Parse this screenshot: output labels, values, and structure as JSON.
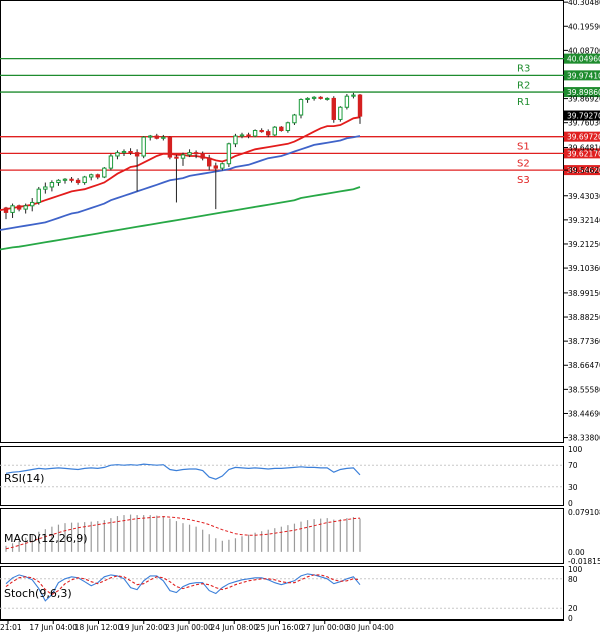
{
  "chart_data": [
    {
      "type": "candlestick",
      "panel": "price",
      "y_axis": {
        "range": [
          38.318,
          40.31
        ],
        "ticks": [
          "40.30480",
          "40.19590",
          "40.08700",
          "39.86920",
          "39.76030",
          "39.64810",
          "39.54620",
          "39.43030",
          "39.32140",
          "39.21250",
          "39.10360",
          "38.99150",
          "38.88250",
          "38.77360",
          "38.66470",
          "38.55580",
          "38.44690",
          "38.33800"
        ]
      },
      "x_axis": {
        "ticks": [
          "21:01",
          "17 Jun 04:00",
          "18 Jun 12:00",
          "19 Jun 20:00",
          "23 Jun 00:00",
          "24 Jun 08:00",
          "25 Jun 16:00",
          "27 Jun 00:00",
          "30 Jun 04:00"
        ]
      },
      "candles": [
        [
          39.375,
          39.38,
          39.325,
          39.355
        ],
        [
          39.355,
          39.395,
          39.33,
          39.385
        ],
        [
          39.385,
          39.39,
          39.36,
          39.37
        ],
        [
          39.37,
          39.395,
          39.35,
          39.385
        ],
        [
          39.385,
          39.42,
          39.36,
          39.4
        ],
        [
          39.4,
          39.47,
          39.39,
          39.46
        ],
        [
          39.46,
          39.49,
          39.44,
          39.47
        ],
        [
          39.47,
          39.5,
          39.45,
          39.49
        ],
        [
          39.49,
          39.505,
          39.475,
          39.5
        ],
        [
          39.5,
          39.51,
          39.485,
          39.505
        ],
        [
          39.505,
          39.515,
          39.49,
          39.5
        ],
        [
          39.5,
          39.51,
          39.48,
          39.49
        ],
        [
          39.49,
          39.52,
          39.48,
          39.515
        ],
        [
          39.515,
          39.53,
          39.5,
          39.525
        ],
        [
          39.525,
          39.53,
          39.505,
          39.515
        ],
        [
          39.515,
          39.56,
          39.51,
          39.555
        ],
        [
          39.555,
          39.62,
          39.545,
          39.61
        ],
        [
          39.61,
          39.635,
          39.595,
          39.625
        ],
        [
          39.625,
          39.64,
          39.61,
          39.63
        ],
        [
          39.63,
          39.645,
          39.615,
          39.625
        ],
        [
          39.625,
          39.64,
          39.45,
          39.61
        ],
        [
          39.61,
          39.7,
          39.6,
          39.695
        ],
        [
          39.695,
          39.705,
          39.68,
          39.7
        ],
        [
          39.7,
          39.71,
          39.685,
          39.69
        ],
        [
          39.69,
          39.705,
          39.68,
          39.695
        ],
        [
          39.695,
          39.7,
          39.595,
          39.605
        ],
        [
          39.605,
          39.615,
          39.4,
          39.6
        ],
        [
          39.6,
          39.625,
          39.565,
          39.615
        ],
        [
          39.615,
          39.64,
          39.605,
          39.625
        ],
        [
          39.625,
          39.635,
          39.6,
          39.62
        ],
        [
          39.62,
          39.63,
          39.59,
          39.6
        ],
        [
          39.6,
          39.615,
          39.545,
          39.565
        ],
        [
          39.565,
          39.58,
          39.37,
          39.555
        ],
        [
          39.555,
          39.58,
          39.545,
          39.575
        ],
        [
          39.575,
          39.67,
          39.56,
          39.665
        ],
        [
          39.665,
          39.71,
          39.65,
          39.7
        ],
        [
          39.7,
          39.715,
          39.69,
          39.705
        ],
        [
          39.705,
          39.715,
          39.69,
          39.7
        ],
        [
          39.7,
          39.73,
          39.695,
          39.725
        ],
        [
          39.725,
          39.735,
          39.715,
          39.72
        ],
        [
          39.72,
          39.73,
          39.695,
          39.705
        ],
        [
          39.705,
          39.745,
          39.7,
          39.74
        ],
        [
          39.74,
          39.745,
          39.72,
          39.725
        ],
        [
          39.725,
          39.765,
          39.715,
          39.76
        ],
        [
          39.76,
          39.8,
          39.75,
          39.795
        ],
        [
          39.795,
          39.87,
          39.78,
          39.865
        ],
        [
          39.865,
          39.875,
          39.85,
          39.87
        ],
        [
          39.87,
          39.88,
          39.86,
          39.875
        ],
        [
          39.875,
          39.88,
          39.865,
          39.87
        ],
        [
          39.87,
          39.875,
          39.86,
          39.87
        ],
        [
          39.87,
          39.88,
          39.76,
          39.775
        ],
        [
          39.775,
          39.835,
          39.765,
          39.83
        ],
        [
          39.83,
          39.89,
          39.82,
          39.88
        ],
        [
          39.88,
          39.895,
          39.87,
          39.885
        ],
        [
          39.885,
          39.89,
          39.755,
          39.79
        ]
      ],
      "series": [
        {
          "color": "#e31c1c",
          "values": [
            39.37,
            39.375,
            39.38,
            39.385,
            39.39,
            39.4,
            39.41,
            39.42,
            39.43,
            39.44,
            39.45,
            39.455,
            39.46,
            39.47,
            39.48,
            39.49,
            39.51,
            39.53,
            39.545,
            39.56,
            39.565,
            39.58,
            39.595,
            39.61,
            39.62,
            39.62,
            39.615,
            39.615,
            39.61,
            39.61,
            39.605,
            39.6,
            39.59,
            39.585,
            39.595,
            39.61,
            39.62,
            39.63,
            39.64,
            39.645,
            39.65,
            39.655,
            39.66,
            39.665,
            39.675,
            39.69,
            39.705,
            39.72,
            39.735,
            39.745,
            39.745,
            39.75,
            39.765,
            39.78,
            39.785
          ]
        },
        {
          "color": "#3f63c9",
          "values": [
            39.28,
            39.285,
            39.29,
            39.295,
            39.3,
            39.305,
            39.31,
            39.32,
            39.33,
            39.34,
            39.35,
            39.355,
            39.365,
            39.375,
            39.385,
            39.395,
            39.41,
            39.42,
            39.43,
            39.44,
            39.45,
            39.46,
            39.47,
            39.48,
            39.49,
            39.5,
            39.505,
            39.51,
            39.52,
            39.525,
            39.53,
            39.535,
            39.54,
            39.545,
            39.55,
            39.56,
            39.565,
            39.57,
            39.58,
            39.59,
            39.6,
            39.605,
            39.61,
            39.62,
            39.63,
            39.64,
            39.65,
            39.66,
            39.665,
            39.67,
            39.675,
            39.68,
            39.69,
            39.695,
            39.7
          ]
        },
        {
          "color": "#27a846",
          "values": [
            39.192,
            39.197,
            39.2,
            39.205,
            39.21,
            39.215,
            39.22,
            39.225,
            39.23,
            39.235,
            39.24,
            39.245,
            39.25,
            39.255,
            39.26,
            39.265,
            39.27,
            39.275,
            39.28,
            39.285,
            39.29,
            39.295,
            39.3,
            39.305,
            39.31,
            39.315,
            39.32,
            39.325,
            39.33,
            39.335,
            39.34,
            39.345,
            39.35,
            39.355,
            39.36,
            39.365,
            39.37,
            39.375,
            39.38,
            39.385,
            39.39,
            39.395,
            39.4,
            39.405,
            39.41,
            39.42,
            39.425,
            39.43,
            39.435,
            39.44,
            39.445,
            39.45,
            39.455,
            39.46,
            39.47
          ]
        }
      ],
      "levels": [
        {
          "label": "R3",
          "value": 40.0496,
          "price_label": "40.04960",
          "color": "#1e8c2e"
        },
        {
          "label": "R2",
          "value": 39.9741,
          "price_label": "39.97410",
          "color": "#1e8c2e"
        },
        {
          "label": "R1",
          "value": 39.8986,
          "price_label": "39.89860",
          "color": "#1e8c2e"
        },
        {
          "label": "S1",
          "value": 39.6972,
          "price_label": "39.69720",
          "color": "#e02020"
        },
        {
          "label": "S2",
          "value": 39.6217,
          "price_label": "39.62170",
          "color": "#e02020"
        },
        {
          "label": "S3",
          "value": 39.5462,
          "price_label": "39.54620",
          "color": "#e02020"
        }
      ],
      "current_price": {
        "value": 39.7927,
        "label": "39.79270"
      }
    },
    {
      "type": "line",
      "panel": "rsi",
      "title": "RSI(14)",
      "color": "#3b7fd9",
      "ylim": [
        0,
        100
      ],
      "ticks": [
        "100",
        "70",
        "30",
        "0"
      ],
      "values": [
        55,
        57,
        58,
        60,
        62,
        64,
        63,
        64,
        65,
        64,
        63,
        62,
        64,
        65,
        64,
        66,
        70,
        71,
        70,
        71,
        70,
        72,
        71,
        70,
        71,
        62,
        60,
        62,
        63,
        63,
        60,
        48,
        44,
        50,
        62,
        66,
        65,
        64,
        65,
        64,
        63,
        64,
        64,
        65,
        66,
        67,
        66,
        66,
        65,
        65,
        57,
        62,
        64,
        65,
        52
      ]
    },
    {
      "type": "bar",
      "panel": "macd",
      "title": "MACD(12,26,9)",
      "ylim": [
        -0.018159,
        0.079108
      ],
      "ticks": [
        "0.079108",
        "0.00",
        "-0.018159"
      ],
      "bars_color": "#9a9a9a",
      "signal_color": "#e02020",
      "bars": [
        0.012,
        0.017,
        0.022,
        0.028,
        0.034,
        0.04,
        0.045,
        0.05,
        0.054,
        0.057,
        0.058,
        0.058,
        0.059,
        0.06,
        0.061,
        0.063,
        0.067,
        0.071,
        0.073,
        0.074,
        0.073,
        0.073,
        0.073,
        0.072,
        0.071,
        0.066,
        0.061,
        0.057,
        0.054,
        0.05,
        0.044,
        0.035,
        0.027,
        0.022,
        0.024,
        0.027,
        0.031,
        0.034,
        0.038,
        0.041,
        0.044,
        0.047,
        0.05,
        0.053,
        0.056,
        0.06,
        0.063,
        0.065,
        0.066,
        0.067,
        0.064,
        0.065,
        0.067,
        0.069,
        0.066
      ],
      "signal": [
        0.006,
        0.009,
        0.013,
        0.017,
        0.021,
        0.026,
        0.03,
        0.034,
        0.038,
        0.042,
        0.045,
        0.048,
        0.05,
        0.052,
        0.054,
        0.056,
        0.058,
        0.06,
        0.062,
        0.064,
        0.066,
        0.067,
        0.068,
        0.069,
        0.07,
        0.069,
        0.068,
        0.066,
        0.064,
        0.061,
        0.058,
        0.054,
        0.049,
        0.044,
        0.04,
        0.036,
        0.034,
        0.033,
        0.033,
        0.034,
        0.035,
        0.037,
        0.039,
        0.041,
        0.043,
        0.046,
        0.049,
        0.052,
        0.055,
        0.058,
        0.06,
        0.062,
        0.064,
        0.066,
        0.067
      ]
    },
    {
      "type": "line",
      "panel": "stochastic",
      "title": "Stoch(9,6,3)",
      "ylim": [
        0,
        100
      ],
      "ticks": [
        "100",
        "80",
        "20",
        "0"
      ],
      "series": [
        {
          "color": "#3b7fd9",
          "values": [
            70,
            82,
            88,
            84,
            78,
            60,
            35,
            48,
            72,
            80,
            84,
            82,
            74,
            66,
            72,
            84,
            88,
            86,
            80,
            62,
            58,
            76,
            86,
            86,
            76,
            56,
            52,
            64,
            70,
            72,
            72,
            56,
            50,
            62,
            70,
            74,
            78,
            80,
            82,
            82,
            78,
            72,
            68,
            72,
            76,
            86,
            90,
            88,
            84,
            80,
            70,
            74,
            80,
            84,
            68
          ]
        },
        {
          "color": "#e02020",
          "values": [
            64,
            74,
            82,
            84,
            82,
            74,
            58,
            48,
            56,
            70,
            78,
            82,
            80,
            74,
            70,
            76,
            82,
            86,
            84,
            76,
            68,
            70,
            78,
            84,
            82,
            74,
            64,
            60,
            64,
            68,
            70,
            68,
            62,
            58,
            62,
            68,
            72,
            76,
            78,
            80,
            80,
            78,
            74,
            72,
            72,
            78,
            84,
            88,
            88,
            84,
            78,
            75,
            76,
            80,
            78
          ]
        }
      ]
    }
  ]
}
